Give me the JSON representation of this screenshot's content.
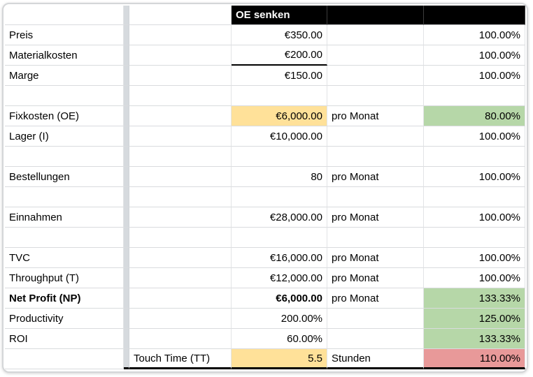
{
  "sheet": {
    "header": {
      "title": "OE senken"
    },
    "colors": {
      "header_bg": "#000000",
      "header_fg": "#ffffff",
      "highlight_yellow": "#ffe199",
      "highlight_green": "#b6d7a8",
      "highlight_red": "#e89999"
    },
    "rows": [
      {
        "label": "Preis",
        "value": "€350.00",
        "pct": "100.00%"
      },
      {
        "label": "Materialkosten",
        "value": "€200.00",
        "pct": "100.00%",
        "value_underline": true
      },
      {
        "label": "Marge",
        "value": "€150.00",
        "pct": "100.00%"
      },
      {},
      {
        "label": "Fixkosten (OE)",
        "value": "€6,000.00",
        "unit": "pro Monat",
        "pct": "80.00%",
        "value_bg": "yellow",
        "pct_bg": "green"
      },
      {
        "label": "Lager (I)",
        "value": "€10,000.00",
        "pct": "100.00%"
      },
      {},
      {
        "label": "Bestellungen",
        "value": "80",
        "unit": "pro Monat",
        "pct": "100.00%"
      },
      {},
      {
        "label": "Einnahmen",
        "value": "€28,000.00",
        "unit": "pro Monat",
        "pct": "100.00%"
      },
      {},
      {
        "label": "TVC",
        "value": "€16,000.00",
        "unit": "pro Monat",
        "pct": "100.00%"
      },
      {
        "label": "Throughput (T)",
        "value": "€12,000.00",
        "unit": "pro Monat",
        "pct": "100.00%"
      },
      {
        "label": "Net Profit (NP)",
        "value": "€6,000.00",
        "unit": "pro Monat",
        "pct": "133.33%",
        "bold": true,
        "pct_bg": "green"
      },
      {
        "label": "Productivity",
        "value": "200.00%",
        "pct": "125.00%",
        "pct_bg": "green"
      },
      {
        "label": "ROI",
        "value": "60.00%",
        "pct": "133.33%",
        "pct_bg": "green"
      },
      {
        "label2": "Touch Time (TT)",
        "value": "5.5",
        "unit": "Stunden",
        "pct": "110.00%",
        "value_bg": "yellow",
        "pct_bg": "red",
        "thick_bottom": true
      }
    ]
  }
}
